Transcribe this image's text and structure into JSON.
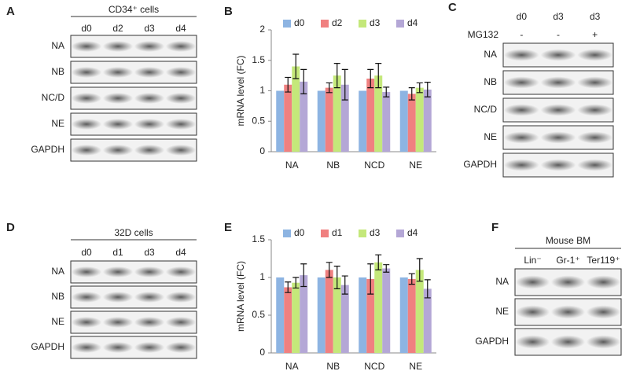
{
  "panels": {
    "A": {
      "letter": "A",
      "header": "CD34⁺ cells",
      "lanes": [
        "d0",
        "d2",
        "d3",
        "d4"
      ],
      "rows": [
        "NA",
        "NB",
        "NC/D",
        "NE",
        "GAPDH"
      ]
    },
    "C": {
      "letter": "C",
      "lanes": [
        "d0",
        "d3",
        "d3"
      ],
      "treatment": {
        "label": "MG132",
        "marks": [
          "-",
          "-",
          "+"
        ]
      },
      "rows": [
        "NA",
        "NB",
        "NC/D",
        "NE",
        "GAPDH"
      ]
    },
    "D": {
      "letter": "D",
      "header": "32D cells",
      "lanes": [
        "d0",
        "d1",
        "d3",
        "d4"
      ],
      "rows": [
        "NA",
        "NB",
        "NE",
        "GAPDH"
      ]
    },
    "F": {
      "letter": "F",
      "header": "Mouse BM",
      "lanes": [
        "Lin⁻",
        "Gr-1⁺",
        "Ter119⁺"
      ],
      "rows": [
        "NA",
        "NE",
        "GAPDH"
      ]
    }
  },
  "chart_data": [
    {
      "type": "bar",
      "panel_label": "B",
      "y_label": "mRNA level (FC)",
      "categories": [
        "NA",
        "NB",
        "NCD",
        "NE"
      ],
      "series": [
        {
          "name": "d0",
          "color": "#8db4e2",
          "values": [
            1,
            1,
            1,
            1
          ],
          "errors": [
            0,
            0,
            0,
            0
          ]
        },
        {
          "name": "d2",
          "color": "#f08080",
          "values": [
            1.1,
            1.05,
            1.2,
            0.95
          ],
          "errors": [
            0.12,
            0.08,
            0.15,
            0.1
          ]
        },
        {
          "name": "d3",
          "color": "#c4e87a",
          "values": [
            1.4,
            1.25,
            1.25,
            1.05
          ],
          "errors": [
            0.2,
            0.2,
            0.2,
            0.08
          ]
        },
        {
          "name": "d4",
          "color": "#b4a7d6",
          "values": [
            1.15,
            1.1,
            0.98,
            1.02
          ],
          "errors": [
            0.2,
            0.25,
            0.08,
            0.12
          ]
        }
      ],
      "ylim": [
        0,
        2
      ],
      "yticks": [
        0,
        0.5,
        1,
        1.5,
        2
      ]
    },
    {
      "type": "bar",
      "panel_label": "E",
      "y_label": "mRNA level (FC)",
      "categories": [
        "NA",
        "NB",
        "NCD",
        "NE"
      ],
      "series": [
        {
          "name": "d0",
          "color": "#8db4e2",
          "values": [
            1,
            1,
            1,
            1
          ],
          "errors": [
            0,
            0,
            0,
            0
          ]
        },
        {
          "name": "d1",
          "color": "#f08080",
          "values": [
            0.87,
            1.1,
            0.98,
            0.98
          ],
          "errors": [
            0.07,
            0.1,
            0.2,
            0.07
          ]
        },
        {
          "name": "d3",
          "color": "#c4e87a",
          "values": [
            0.93,
            1.0,
            1.2,
            1.1
          ],
          "errors": [
            0.07,
            0.15,
            0.1,
            0.15
          ]
        },
        {
          "name": "d4",
          "color": "#b4a7d6",
          "values": [
            1.03,
            0.9,
            1.12,
            0.85
          ],
          "errors": [
            0.15,
            0.12,
            0.05,
            0.12
          ]
        }
      ],
      "ylim": [
        0,
        1.5
      ],
      "yticks": [
        0,
        0.5,
        1,
        1.5
      ]
    }
  ]
}
